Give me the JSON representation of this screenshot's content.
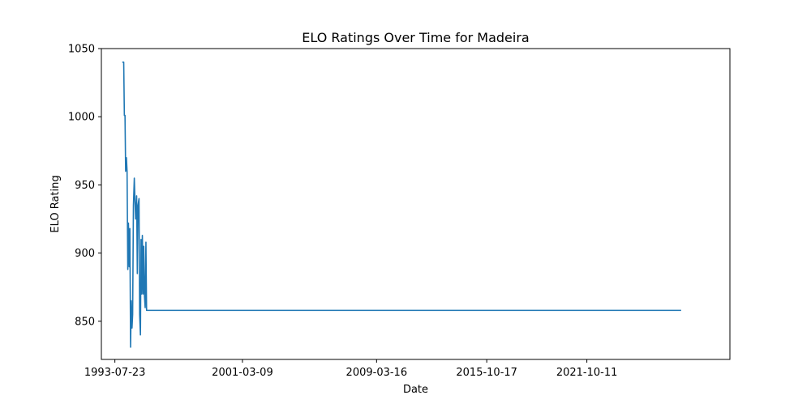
{
  "chart_data": {
    "type": "line",
    "title": "ELO Ratings Over Time for Madeira",
    "xlabel": "Date",
    "ylabel": "ELO Rating",
    "x_ticks": [
      "1993-07-23",
      "2001-03-09",
      "2009-03-16",
      "2015-10-17",
      "2021-10-11"
    ],
    "xlim": [
      "1992-10-01",
      "2030-05-01"
    ],
    "y_ticks": [
      850,
      900,
      950,
      1000,
      1050
    ],
    "ylim": [
      822,
      1050
    ],
    "grid": false,
    "series": [
      {
        "color": "#1f77b4",
        "x": [
          "1994-01-01",
          "1994-02-01",
          "1994-02-15",
          "1994-03-01",
          "1994-03-15",
          "1994-04-01",
          "1994-04-15",
          "1994-05-01",
          "1994-05-15",
          "1994-06-01",
          "1994-06-15",
          "1994-07-01",
          "1994-07-15",
          "1994-08-01",
          "1994-08-15",
          "1994-09-01",
          "1994-09-20",
          "1994-10-05",
          "1994-10-20",
          "1994-11-10",
          "1994-11-25",
          "1994-12-10",
          "1995-01-01",
          "1995-01-15",
          "1995-02-01",
          "1995-02-15",
          "1995-03-01",
          "1995-03-15",
          "1995-04-01",
          "1995-04-15",
          "1995-05-01",
          "1995-05-15",
          "1995-06-01",
          "1995-06-15",
          "1995-07-01",
          "1995-07-15",
          "1995-08-01",
          "1995-08-15",
          "1995-09-01",
          "1995-09-15",
          "1995-10-01",
          "1995-10-20",
          "1995-11-10",
          "1995-12-01",
          "1996-01-01",
          "2027-06-01"
        ],
        "y": [
          1040,
          1040,
          1001,
          1001,
          960,
          970,
          960,
          888,
          922,
          890,
          918,
          831,
          865,
          845,
          855,
          935,
          955,
          938,
          925,
          942,
          885,
          935,
          940,
          855,
          840,
          910,
          870,
          913,
          870,
          905,
          868,
          860,
          908,
          858,
          858,
          858,
          858,
          858,
          858,
          858,
          858,
          858,
          858,
          858,
          858,
          858
        ]
      }
    ]
  }
}
